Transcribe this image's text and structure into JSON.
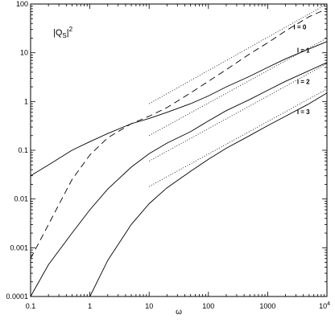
{
  "chart_data": {
    "type": "line",
    "xscale": "log",
    "yscale": "log",
    "xlim": [
      0.1,
      10000
    ],
    "ylim": [
      0.0001,
      100
    ],
    "grid": false,
    "xlabel": "ω",
    "annotation": {
      "text": "|Q",
      "sub": "S",
      "post": "|",
      "sup": "2"
    },
    "x_ticks": [
      {
        "value": 0.1,
        "label": "0.1"
      },
      {
        "value": 1,
        "label": "1"
      },
      {
        "value": 10,
        "label": "10"
      },
      {
        "value": 100,
        "label": "100"
      },
      {
        "value": 1000,
        "label": "1000"
      },
      {
        "value": 10000,
        "label": "10",
        "sup": "4"
      }
    ],
    "y_ticks": [
      {
        "value": 0.0001,
        "label": "0.0001"
      },
      {
        "value": 0.001,
        "label": "0.001"
      },
      {
        "value": 0.01,
        "label": "0.01"
      },
      {
        "value": 0.1,
        "label": "0.1"
      },
      {
        "value": 1,
        "label": "1"
      },
      {
        "value": 10,
        "label": "10"
      },
      {
        "value": 100,
        "label": "100"
      }
    ],
    "series": [
      {
        "name": "l = 0",
        "label_at": [
          3500,
          30
        ],
        "style": "dashed",
        "points": [
          [
            0.1,
            0.0006
          ],
          [
            0.2,
            0.003
          ],
          [
            0.5,
            0.025
          ],
          [
            1,
            0.08
          ],
          [
            2,
            0.18
          ],
          [
            5,
            0.35
          ],
          [
            10,
            0.5
          ],
          [
            20,
            0.75
          ],
          [
            50,
            1.5
          ],
          [
            100,
            2.6
          ],
          [
            200,
            4.5
          ],
          [
            500,
            9.5
          ],
          [
            1000,
            16
          ],
          [
            2000,
            28
          ],
          [
            5000,
            55
          ],
          [
            10000,
            80
          ]
        ]
      },
      {
        "name": "l = 1",
        "label_at": [
          4000,
          10
        ],
        "style": "solid",
        "points": [
          [
            0.1,
            0.03
          ],
          [
            0.2,
            0.05
          ],
          [
            0.5,
            0.1
          ],
          [
            1,
            0.15
          ],
          [
            2,
            0.22
          ],
          [
            5,
            0.35
          ],
          [
            10,
            0.45
          ],
          [
            20,
            0.6
          ],
          [
            50,
            0.9
          ],
          [
            100,
            1.3
          ],
          [
            200,
            2
          ],
          [
            500,
            3.3
          ],
          [
            1000,
            5
          ],
          [
            2000,
            7.5
          ],
          [
            5000,
            12
          ],
          [
            10000,
            17
          ]
        ]
      },
      {
        "name": "l = 2",
        "label_at": [
          4000,
          2.3
        ],
        "style": "solid",
        "points": [
          [
            0.1,
            0.0001
          ],
          [
            0.2,
            0.00045
          ],
          [
            0.5,
            0.002
          ],
          [
            1,
            0.006
          ],
          [
            2,
            0.016
          ],
          [
            5,
            0.045
          ],
          [
            10,
            0.085
          ],
          [
            20,
            0.14
          ],
          [
            50,
            0.24
          ],
          [
            100,
            0.4
          ],
          [
            200,
            0.65
          ],
          [
            500,
            1.1
          ],
          [
            1000,
            1.7
          ],
          [
            2000,
            2.6
          ],
          [
            5000,
            4.3
          ],
          [
            10000,
            6.3
          ]
        ]
      },
      {
        "name": "l = 3",
        "label_at": [
          4000,
          0.55
        ],
        "style": "solid",
        "points": [
          [
            1,
            0.0001
          ],
          [
            2,
            0.00055
          ],
          [
            5,
            0.003
          ],
          [
            10,
            0.008
          ],
          [
            20,
            0.017
          ],
          [
            50,
            0.037
          ],
          [
            100,
            0.065
          ],
          [
            200,
            0.11
          ],
          [
            500,
            0.2
          ],
          [
            1000,
            0.32
          ],
          [
            2000,
            0.5
          ],
          [
            5000,
            0.9
          ],
          [
            10000,
            1.5
          ]
        ]
      }
    ],
    "asymptotes": [
      {
        "points": [
          [
            10,
            0.9
          ],
          [
            10000,
            100
          ]
        ]
      },
      {
        "points": [
          [
            10,
            0.2
          ],
          [
            10000,
            20
          ]
        ]
      },
      {
        "points": [
          [
            10,
            0.06
          ],
          [
            10000,
            6
          ]
        ]
      },
      {
        "points": [
          [
            10,
            0.018
          ],
          [
            10000,
            1.8
          ]
        ]
      }
    ]
  }
}
